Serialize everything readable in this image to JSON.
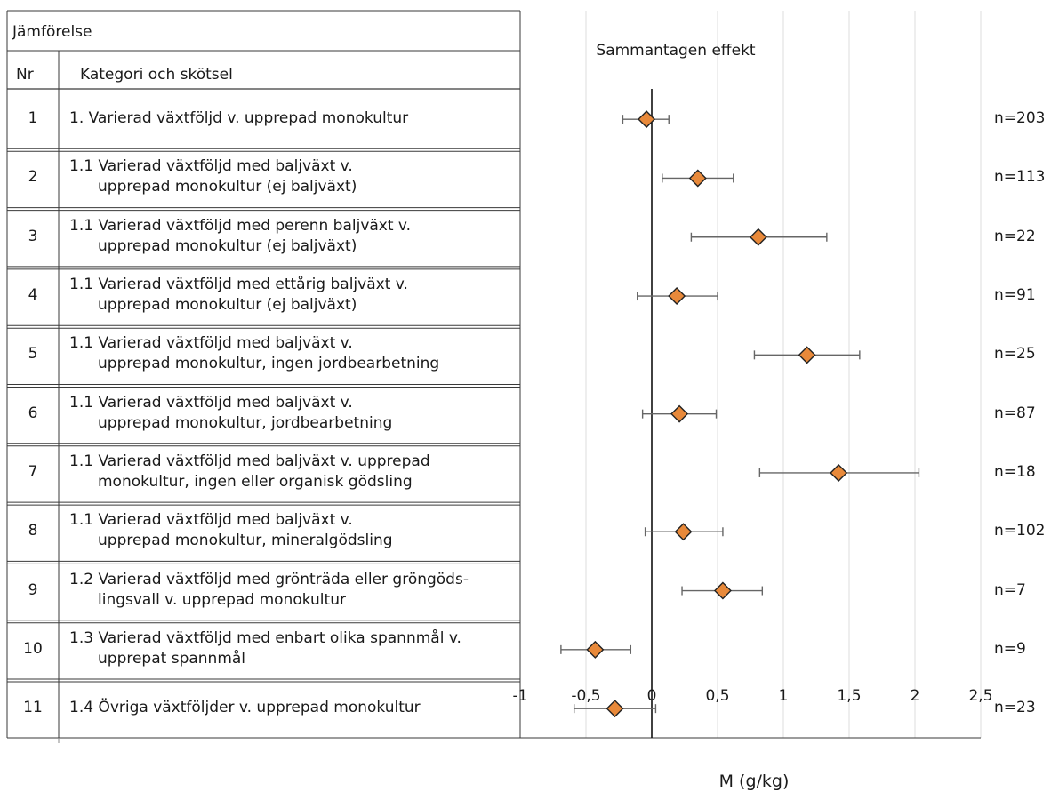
{
  "header": {
    "group_label": "Jämförelse",
    "nr_label": "Nr",
    "category_label": "Kategori och skötsel",
    "effect_label": "Sammantagen effekt"
  },
  "chart_data": {
    "type": "forest",
    "xlabel": "M (g/kg)",
    "xlim": [
      -1,
      2.5
    ],
    "xticks": [
      -1,
      -0.5,
      0,
      0.5,
      1,
      1.5,
      2,
      2.5
    ],
    "xtick_labels": [
      "-1",
      "-0,5",
      "0",
      "0,5",
      "1",
      "1,5",
      "2",
      "2,5"
    ],
    "grid": true,
    "marker_color": "#e8893a",
    "rows": [
      {
        "nr": "1",
        "line1": "1. Varierad växtföljd v. upprepad monokultur",
        "line2": "",
        "estimate": -0.04,
        "ci_low": -0.22,
        "ci_high": 0.13,
        "n": "n=203"
      },
      {
        "nr": "2",
        "line1": "1.1 Varierad växtföljd med baljväxt v.",
        "line2": "upprepad monokultur (ej baljväxt)",
        "estimate": 0.35,
        "ci_low": 0.08,
        "ci_high": 0.62,
        "n": "n=113"
      },
      {
        "nr": "3",
        "line1": "1.1 Varierad växtföljd med perenn baljväxt v.",
        "line2": "upprepad monokultur (ej baljväxt)",
        "estimate": 0.81,
        "ci_low": 0.3,
        "ci_high": 1.33,
        "n": "n=22"
      },
      {
        "nr": "4",
        "line1": "1.1 Varierad växtföljd med ettårig baljväxt v.",
        "line2": "upprepad monokultur (ej baljväxt)",
        "estimate": 0.19,
        "ci_low": -0.11,
        "ci_high": 0.5,
        "n": "n=91"
      },
      {
        "nr": "5",
        "line1": "1.1 Varierad växtföljd med baljväxt v.",
        "line2": "upprepad monokultur, ingen jordbearbetning",
        "estimate": 1.18,
        "ci_low": 0.78,
        "ci_high": 1.58,
        "n": "n=25"
      },
      {
        "nr": "6",
        "line1": "1.1 Varierad växtföljd med baljväxt v.",
        "line2": "upprepad monokultur,  jordbearbetning",
        "estimate": 0.21,
        "ci_low": -0.07,
        "ci_high": 0.49,
        "n": "n=87"
      },
      {
        "nr": "7",
        "line1": "1.1 Varierad växtföljd med baljväxt v. upprepad",
        "line2": "monokultur, ingen eller organisk gödsling",
        "estimate": 1.42,
        "ci_low": 0.82,
        "ci_high": 2.03,
        "n": "n=18"
      },
      {
        "nr": "8",
        "line1": "1.1 Varierad växtföljd med baljväxt v.",
        "line2": "upprepad monokultur, mineralgödsling",
        "estimate": 0.24,
        "ci_low": -0.05,
        "ci_high": 0.54,
        "n": "n=102"
      },
      {
        "nr": "9",
        "line1": "1.2 Varierad växtföljd med grönträda eller gröngöds-",
        "line2": "lingsvall v. upprepad monokultur",
        "estimate": 0.54,
        "ci_low": 0.23,
        "ci_high": 0.84,
        "n": "n=7"
      },
      {
        "nr": "10",
        "line1": "1.3 Varierad växtföljd med enbart olika spannmål v.",
        "line2": "upprepat spannmål",
        "estimate": -0.43,
        "ci_low": -0.69,
        "ci_high": -0.16,
        "n": "n=9"
      },
      {
        "nr": "11",
        "line1": "1.4 Övriga växtföljder v. upprepad monokultur",
        "line2": "",
        "estimate": -0.28,
        "ci_low": -0.59,
        "ci_high": 0.03,
        "n": "n=23"
      }
    ]
  }
}
